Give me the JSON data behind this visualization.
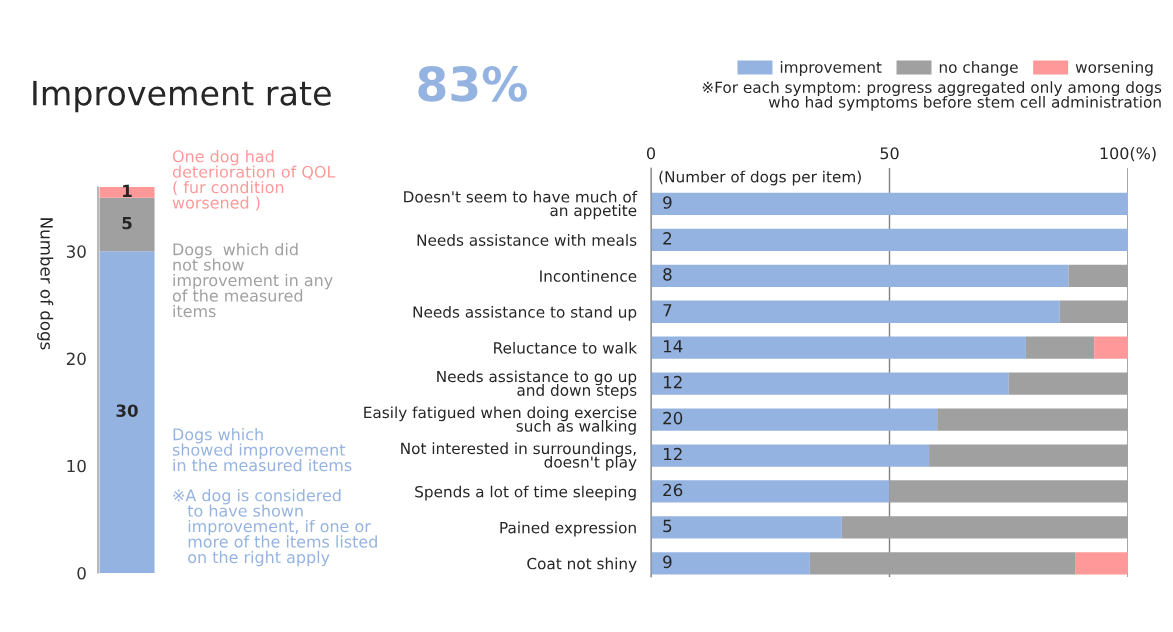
{
  "chart_data": [
    {
      "type": "bar",
      "stacked": true,
      "title": "Improvement rate",
      "ylabel": "Number of dogs",
      "categories": [
        null
      ],
      "series": [
        {
          "color": "#95b3e0",
          "values": [
            30
          ]
        },
        {
          "color": "#a0a0a0",
          "values": [
            5
          ]
        },
        {
          "color": "#ff9999",
          "values": [
            1
          ]
        }
      ],
      "data_labels": true,
      "ylim": [
        0,
        36
      ],
      "yticks": [
        0,
        10,
        20,
        30
      ],
      "tick_labels": "y",
      "annotations": [
        "83%",
        "One dog had\ndeterioration of QOL\n( fur condition\nworsened )",
        "Dogs  which did\nnot show\nimprovement in any\nof the measured\nitems",
        "Dogs which\nshowed improvement\nin the measured items",
        "※A dog is considered\n   to have shown\n   improvement, if one or\n   more of the items listed\n   on the right apply"
      ]
    },
    {
      "type": "bar",
      "stacked": true,
      "orientation": "horizontal",
      "categories": [
        "Doesn't seem to have much of\nan appetite",
        "Needs assistance with meals",
        "Incontinence",
        "Needs assistance to stand up",
        "Reluctance to walk",
        "Needs assistance to go up\nand down steps",
        "Easily fatigued when doing exercise\nsuch as walking",
        "Not interested in surroundings,\ndoesn't play",
        "Spends a lot of time sleeping",
        "Pained expression",
        "Coat not shiny"
      ],
      "series": [
        {
          "name": "improvement",
          "color": "#95b3e0",
          "values": [
            100,
            100,
            87.5,
            85.7,
            78.6,
            75,
            60,
            58.3,
            50,
            40,
            33.3
          ]
        },
        {
          "name": "no change",
          "color": "#a0a0a0",
          "values": [
            0,
            0,
            12.5,
            14.3,
            14.3,
            25,
            40,
            41.7,
            50,
            60,
            55.6
          ]
        },
        {
          "name": "worsening",
          "color": "#ff9999",
          "values": [
            0,
            0,
            0,
            0,
            7.1,
            0,
            0,
            0,
            0,
            0,
            11.1
          ]
        }
      ],
      "xlim": [
        0,
        100
      ],
      "xticks": [
        0,
        50,
        {
          "value": 100,
          "label": "100(%)"
        }
      ],
      "grid": "x",
      "legend": "top right",
      "annotations": [
        "(Number of dogs per item)",
        "※For each symptom: progress aggregated only among dogs\n   who had symptoms before stem cell administration",
        "9",
        "2",
        "8",
        "7",
        "14",
        "12",
        "20",
        "12",
        "26",
        "5",
        "9"
      ]
    }
  ]
}
